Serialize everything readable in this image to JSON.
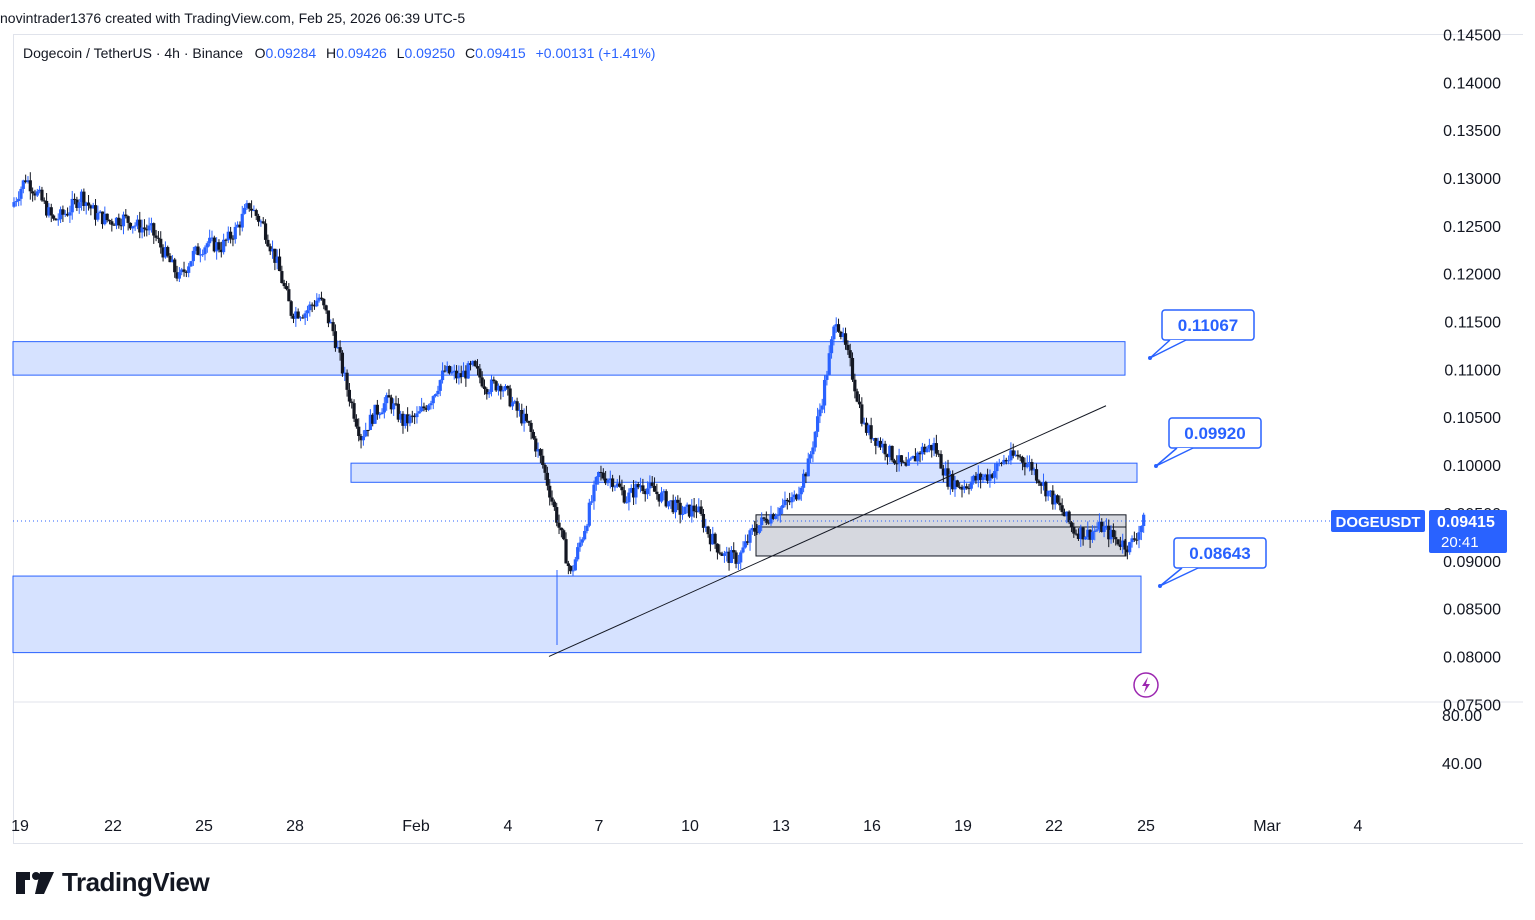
{
  "header": {
    "attribution": "novintrader1376 created with TradingView.com, Feb 25, 2026 06:39 UTC-5"
  },
  "legend": {
    "symbol": "Dogecoin / TetherUS · 4h · Binance",
    "open_label": "O",
    "open": "0.09284",
    "high_label": "H",
    "high": "0.09426",
    "low_label": "L",
    "low": "0.09250",
    "close_label": "C",
    "close": "0.09415",
    "change": "+0.00131 (+1.41%)"
  },
  "price_tag": {
    "ticker": "DOGEUSDT",
    "price": "0.09415",
    "countdown": "20:41"
  },
  "brand": {
    "name": "TradingView"
  },
  "colors": {
    "up": "#2962ff",
    "down": "#131722",
    "zone_fill": "#d6e2ff",
    "zone_border": "#2962ff",
    "gray_zone": "#d1d4dc"
  },
  "chart_data": {
    "type": "candlestick",
    "symbol": "DOGEUSDT",
    "timeframe": "4h",
    "y_axis_ticks": [
      "0.14500",
      "0.14000",
      "0.13500",
      "0.13000",
      "0.12500",
      "0.12000",
      "0.11500",
      "0.11000",
      "0.10500",
      "0.10000",
      "0.09500",
      "0.09000",
      "0.08500",
      "0.08000",
      "0.07500"
    ],
    "ylim": [
      0.0755,
      0.145
    ],
    "osc_axis_ticks": [
      "80.00",
      "40.00"
    ],
    "x_axis_ticks": [
      "19",
      "22",
      "25",
      "28",
      "Feb",
      "4",
      "7",
      "10",
      "13",
      "16",
      "19",
      "22",
      "25",
      "Mar",
      "4"
    ],
    "annotations": [
      {
        "label": "0.11067",
        "type": "callout"
      },
      {
        "label": "0.09920",
        "type": "callout"
      },
      {
        "label": "0.08643",
        "type": "callout"
      }
    ],
    "zones": [
      {
        "kind": "resistance",
        "from": 0.1094,
        "to": 0.1129
      },
      {
        "kind": "resistance",
        "from": 0.0982,
        "to": 0.1002
      },
      {
        "kind": "consolidation",
        "from": 0.0905,
        "to": 0.0948
      },
      {
        "kind": "support",
        "from": 0.0804,
        "to": 0.0884
      }
    ],
    "trendline": {
      "from_price": 0.08,
      "to_price": 0.1062
    },
    "last_price": 0.09415,
    "price_path": [
      0.127,
      0.13,
      0.128,
      0.1255,
      0.1265,
      0.1282,
      0.1262,
      0.1255,
      0.1258,
      0.125,
      0.1245,
      0.122,
      0.1195,
      0.122,
      0.1232,
      0.1228,
      0.1245,
      0.1272,
      0.125,
      0.121,
      0.116,
      0.116,
      0.1175,
      0.114,
      0.108,
      0.103,
      0.1055,
      0.1068,
      0.1045,
      0.105,
      0.107,
      0.1098,
      0.1092,
      0.1102,
      0.1082,
      0.1085,
      0.106,
      0.104,
      0.1,
      0.0945,
      0.0885,
      0.0935,
      0.099,
      0.0985,
      0.0965,
      0.098,
      0.0972,
      0.0962,
      0.095,
      0.0955,
      0.0925,
      0.0905,
      0.0902,
      0.093,
      0.0945,
      0.0955,
      0.0965,
      0.1,
      0.107,
      0.1155,
      0.1105,
      0.104,
      0.1025,
      0.101,
      0.0995,
      0.1015,
      0.102,
      0.0985,
      0.0978,
      0.0985,
      0.099,
      0.1005,
      0.101,
      0.0998,
      0.0975,
      0.0955,
      0.0932,
      0.0928,
      0.0935,
      0.0922,
      0.0915,
      0.0941
    ]
  }
}
